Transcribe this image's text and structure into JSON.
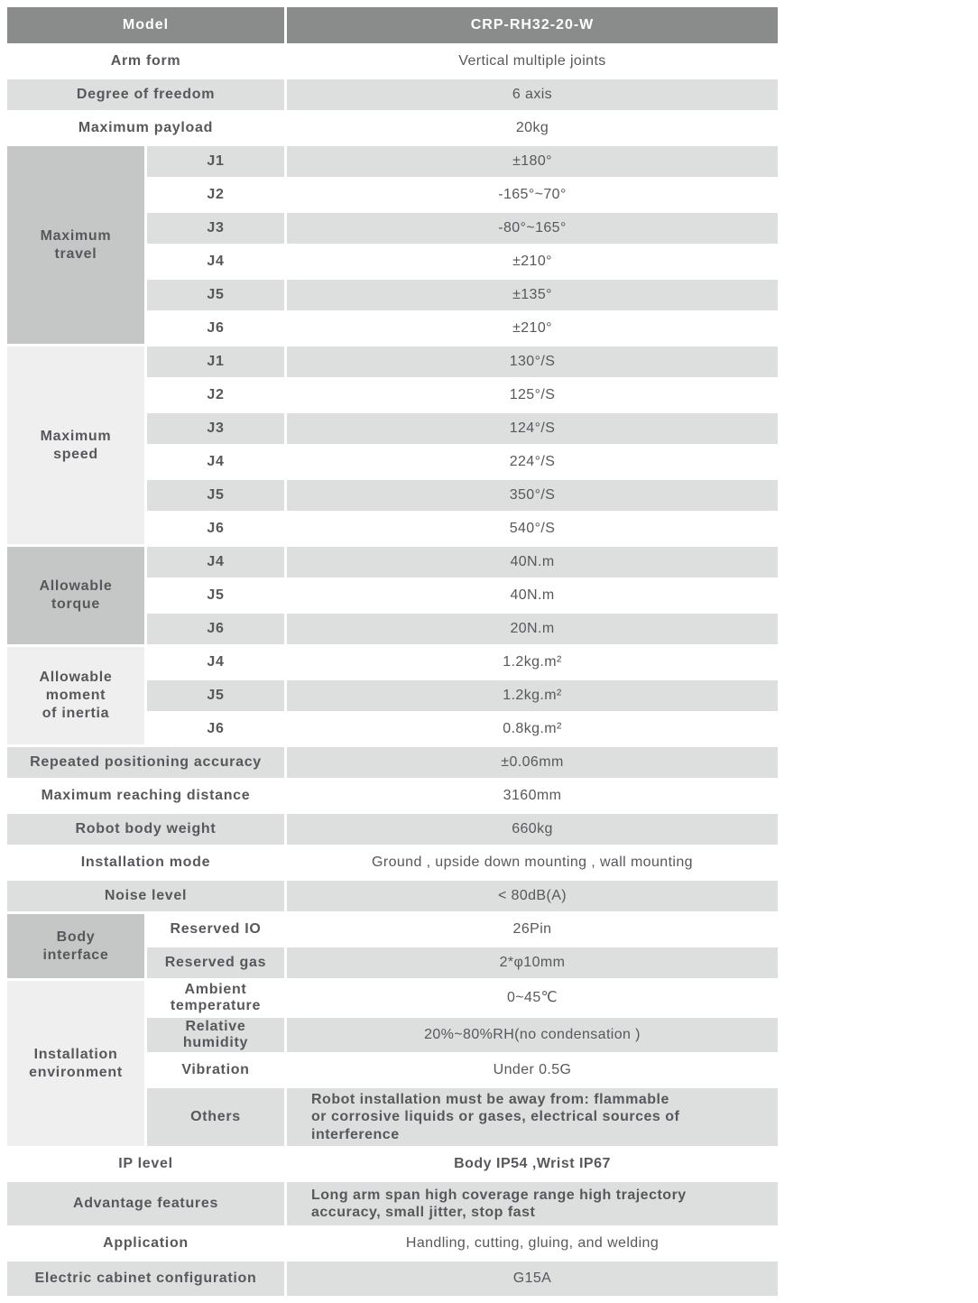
{
  "colors": {
    "header_bg": "#8a8b8b",
    "header_text": "#ffffff",
    "row_shade": "#dddede",
    "row_plain": "#ffffff",
    "group_dark": "#c5c6c6",
    "group_light": "#efefef",
    "text": "#56585c"
  },
  "spec": {
    "header": {
      "label": "Model",
      "value": "CRP-RH32-20-W"
    },
    "arm_form": {
      "label": "Arm form",
      "value": "Vertical multiple joints"
    },
    "degree_of_freedom": {
      "label": "Degree of freedom",
      "value": "6 axis"
    },
    "max_payload": {
      "label": "Maximum payload",
      "value": "20kg"
    },
    "max_travel": {
      "label": "Maximum\ntravel",
      "rows": [
        {
          "joint": "J1",
          "value": "±180°"
        },
        {
          "joint": "J2",
          "value": "-165°~70°"
        },
        {
          "joint": "J3",
          "value": "-80°~165°"
        },
        {
          "joint": "J4",
          "value": "±210°"
        },
        {
          "joint": "J5",
          "value": "±135°"
        },
        {
          "joint": "J6",
          "value": "±210°"
        }
      ]
    },
    "max_speed": {
      "label": "Maximum\nspeed",
      "rows": [
        {
          "joint": "J1",
          "value": "130°/S"
        },
        {
          "joint": "J2",
          "value": "125°/S"
        },
        {
          "joint": "J3",
          "value": "124°/S"
        },
        {
          "joint": "J4",
          "value": "224°/S"
        },
        {
          "joint": "J5",
          "value": "350°/S"
        },
        {
          "joint": "J6",
          "value": "540°/S"
        }
      ]
    },
    "allowable_torque": {
      "label": "Allowable\ntorque",
      "rows": [
        {
          "joint": "J4",
          "value": "40N.m"
        },
        {
          "joint": "J5",
          "value": "40N.m"
        },
        {
          "joint": "J6",
          "value": "20N.m"
        }
      ]
    },
    "allowable_inertia": {
      "label": "Allowable\nmoment\nof inertia",
      "rows": [
        {
          "joint": "J4",
          "value": "1.2kg.m²"
        },
        {
          "joint": "J5",
          "value": "1.2kg.m²"
        },
        {
          "joint": "J6",
          "value": "0.8kg.m²"
        }
      ]
    },
    "positioning_accuracy": {
      "label": "Repeated positioning accuracy",
      "value": "±0.06mm"
    },
    "reaching_distance": {
      "label": "Maximum reaching distance",
      "value": "3160mm"
    },
    "body_weight": {
      "label": "Robot body weight",
      "value": "660kg"
    },
    "installation_mode": {
      "label": "Installation mode",
      "value": "Ground ,  upside down mounting ,  wall mounting"
    },
    "noise_level": {
      "label": "Noise level",
      "value": "< 80dB(A)"
    },
    "body_interface": {
      "label": "Body\ninterface",
      "rows": [
        {
          "name": "Reserved IO",
          "value": "26Pin"
        },
        {
          "name": "Reserved gas",
          "value": "2*φ10mm"
        }
      ]
    },
    "installation_environment": {
      "label": "Installation\nenvironment",
      "rows": [
        {
          "name": "Ambient\ntemperature",
          "value": "0~45℃"
        },
        {
          "name": "Relative\nhumidity",
          "value": "20%~80%RH(no condensation )"
        },
        {
          "name": "Vibration",
          "value": "Under 0.5G"
        },
        {
          "name": "Others",
          "value": "Robot installation must be away from: flammable\nor corrosive liquids or gases, electrical sources of\ninterference"
        }
      ]
    },
    "ip_level": {
      "label": "IP level",
      "value": "Body IP54 ,Wrist IP67"
    },
    "advantage_features": {
      "label": "Advantage features",
      "value": "Long arm span high coverage range  high trajectory\naccuracy, small jitter, stop fast"
    },
    "application": {
      "label": "Application",
      "value": "Handling, cutting, gluing, and welding"
    },
    "electric_cabinet": {
      "label": "Electric cabinet configuration",
      "value": "G15A"
    }
  }
}
